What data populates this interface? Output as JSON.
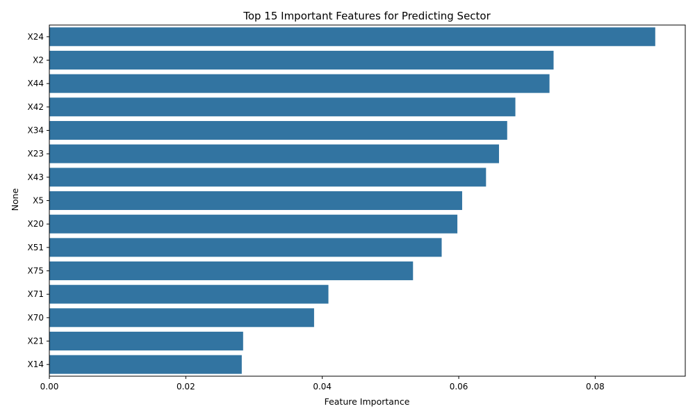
{
  "chart_data": {
    "type": "bar",
    "orientation": "horizontal",
    "title": "Top 15 Important Features for Predicting Sector",
    "xlabel": "Feature Importance",
    "ylabel": "None",
    "xlim": [
      0,
      0.0932
    ],
    "xticks": [
      0.0,
      0.02,
      0.04,
      0.06,
      0.08
    ],
    "xtick_labels": [
      "0.00",
      "0.02",
      "0.04",
      "0.06",
      "0.08"
    ],
    "grid": false,
    "bar_color": "#3274a1",
    "categories": [
      "X24",
      "X2",
      "X44",
      "X42",
      "X34",
      "X23",
      "X43",
      "X5",
      "X20",
      "X51",
      "X75",
      "X71",
      "X70",
      "X21",
      "X14"
    ],
    "values": [
      0.0888,
      0.0739,
      0.0733,
      0.0683,
      0.0671,
      0.0659,
      0.064,
      0.0605,
      0.0598,
      0.0575,
      0.0533,
      0.0409,
      0.0388,
      0.0284,
      0.0282
    ]
  }
}
